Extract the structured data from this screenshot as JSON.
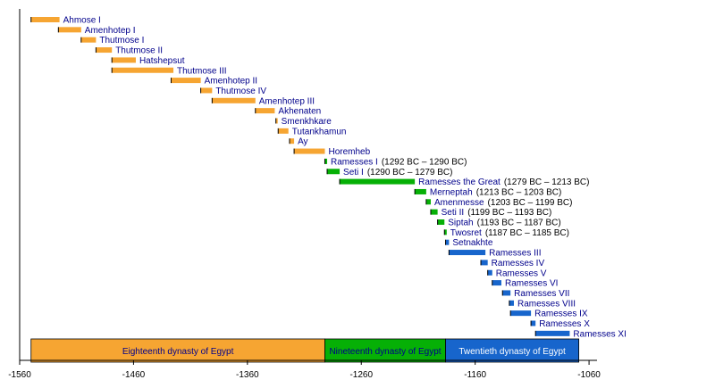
{
  "chart_data": {
    "type": "timeline",
    "x_axis": {
      "range": [
        -1560,
        -1053
      ],
      "ticks": [
        -1560,
        -1460,
        -1360,
        -1260,
        -1160,
        -1060
      ]
    },
    "colors": {
      "eighteenth": "#f6a532",
      "nineteenth": "#06b006",
      "twentieth": "#1765cc",
      "axis": "#000000",
      "name_text": "#00008b"
    },
    "rulers": [
      {
        "name": "Ahmose I",
        "dates": "",
        "start": -1550,
        "end": -1525,
        "dynasty": "eighteenth"
      },
      {
        "name": "Amenhotep I",
        "dates": "",
        "start": -1526,
        "end": -1506,
        "dynasty": "eighteenth"
      },
      {
        "name": "Thutmose I",
        "dates": "",
        "start": -1506,
        "end": -1493,
        "dynasty": "eighteenth"
      },
      {
        "name": "Thutmose II",
        "dates": "",
        "start": -1493,
        "end": -1479,
        "dynasty": "eighteenth"
      },
      {
        "name": "Hatshepsut",
        "dates": "",
        "start": -1479,
        "end": -1458,
        "dynasty": "eighteenth"
      },
      {
        "name": "Thutmose III",
        "dates": "",
        "start": -1479,
        "end": -1425,
        "dynasty": "eighteenth"
      },
      {
        "name": "Amenhotep II",
        "dates": "",
        "start": -1427,
        "end": -1401,
        "dynasty": "eighteenth"
      },
      {
        "name": "Thutmose IV",
        "dates": "",
        "start": -1401,
        "end": -1391,
        "dynasty": "eighteenth"
      },
      {
        "name": "Amenhotep III",
        "dates": "",
        "start": -1391,
        "end": -1353,
        "dynasty": "eighteenth"
      },
      {
        "name": "Akhenaten",
        "dates": "",
        "start": -1353,
        "end": -1336,
        "dynasty": "eighteenth"
      },
      {
        "name": "Smenkhkare",
        "dates": "",
        "start": -1335,
        "end": -1334,
        "dynasty": "eighteenth"
      },
      {
        "name": "Tutankhamun",
        "dates": "",
        "start": -1333,
        "end": -1324,
        "dynasty": "eighteenth"
      },
      {
        "name": "Ay",
        "dates": "",
        "start": -1323,
        "end": -1319,
        "dynasty": "eighteenth"
      },
      {
        "name": "Horemheb",
        "dates": "",
        "start": -1319,
        "end": -1292,
        "dynasty": "eighteenth"
      },
      {
        "name": "Ramesses I",
        "dates": "(1292 BC – 1290 BC)",
        "start": -1292,
        "end": -1290,
        "dynasty": "nineteenth"
      },
      {
        "name": "Seti I",
        "dates": "(1290 BC – 1279 BC)",
        "start": -1290,
        "end": -1279,
        "dynasty": "nineteenth"
      },
      {
        "name": "Ramesses the Great",
        "dates": "(1279 BC – 1213 BC)",
        "start": -1279,
        "end": -1213,
        "dynasty": "nineteenth"
      },
      {
        "name": "Merneptah",
        "dates": "(1213 BC – 1203 BC)",
        "start": -1213,
        "end": -1203,
        "dynasty": "nineteenth"
      },
      {
        "name": "Amenmesse",
        "dates": "(1203 BC – 1199 BC)",
        "start": -1203,
        "end": -1199,
        "dynasty": "nineteenth"
      },
      {
        "name": "Seti II",
        "dates": "(1199 BC – 1193 BC)",
        "start": -1199,
        "end": -1193,
        "dynasty": "nineteenth"
      },
      {
        "name": "Siptah",
        "dates": "(1193 BC – 1187 BC)",
        "start": -1193,
        "end": -1187,
        "dynasty": "nineteenth"
      },
      {
        "name": "Twosret",
        "dates": "(1187 BC – 1185 BC)",
        "start": -1187,
        "end": -1185,
        "dynasty": "nineteenth"
      },
      {
        "name": "Setnakhte",
        "dates": "",
        "start": -1186,
        "end": -1183,
        "dynasty": "twentieth"
      },
      {
        "name": "Ramesses III",
        "dates": "",
        "start": -1183,
        "end": -1151,
        "dynasty": "twentieth"
      },
      {
        "name": "Ramesses IV",
        "dates": "",
        "start": -1155,
        "end": -1149,
        "dynasty": "twentieth"
      },
      {
        "name": "Ramesses V",
        "dates": "",
        "start": -1149,
        "end": -1145,
        "dynasty": "twentieth"
      },
      {
        "name": "Ramesses VI",
        "dates": "",
        "start": -1145,
        "end": -1137,
        "dynasty": "twentieth"
      },
      {
        "name": "Ramesses VII",
        "dates": "",
        "start": -1136,
        "end": -1129,
        "dynasty": "twentieth"
      },
      {
        "name": "Ramesses VIII",
        "dates": "",
        "start": -1130,
        "end": -1126,
        "dynasty": "twentieth"
      },
      {
        "name": "Ramesses IX",
        "dates": "",
        "start": -1129,
        "end": -1111,
        "dynasty": "twentieth"
      },
      {
        "name": "Ramesses X",
        "dates": "",
        "start": -1111,
        "end": -1107,
        "dynasty": "twentieth"
      },
      {
        "name": "Ramesses XI",
        "dates": "",
        "start": -1107,
        "end": -1077,
        "dynasty": "twentieth"
      }
    ],
    "dynasties": [
      {
        "name": "Eighteenth dynasty of Egypt",
        "start": -1550,
        "end": -1292,
        "dynasty": "eighteenth",
        "text_color": "#00008b"
      },
      {
        "name": "Nineteenth dynasty of Egypt",
        "start": -1292,
        "end": -1186,
        "dynasty": "nineteenth",
        "text_color": "#00008b"
      },
      {
        "name": "Twentieth dynasty of Egypt",
        "start": -1186,
        "end": -1069,
        "dynasty": "twentieth",
        "text_color": "#ffffff"
      }
    ]
  }
}
